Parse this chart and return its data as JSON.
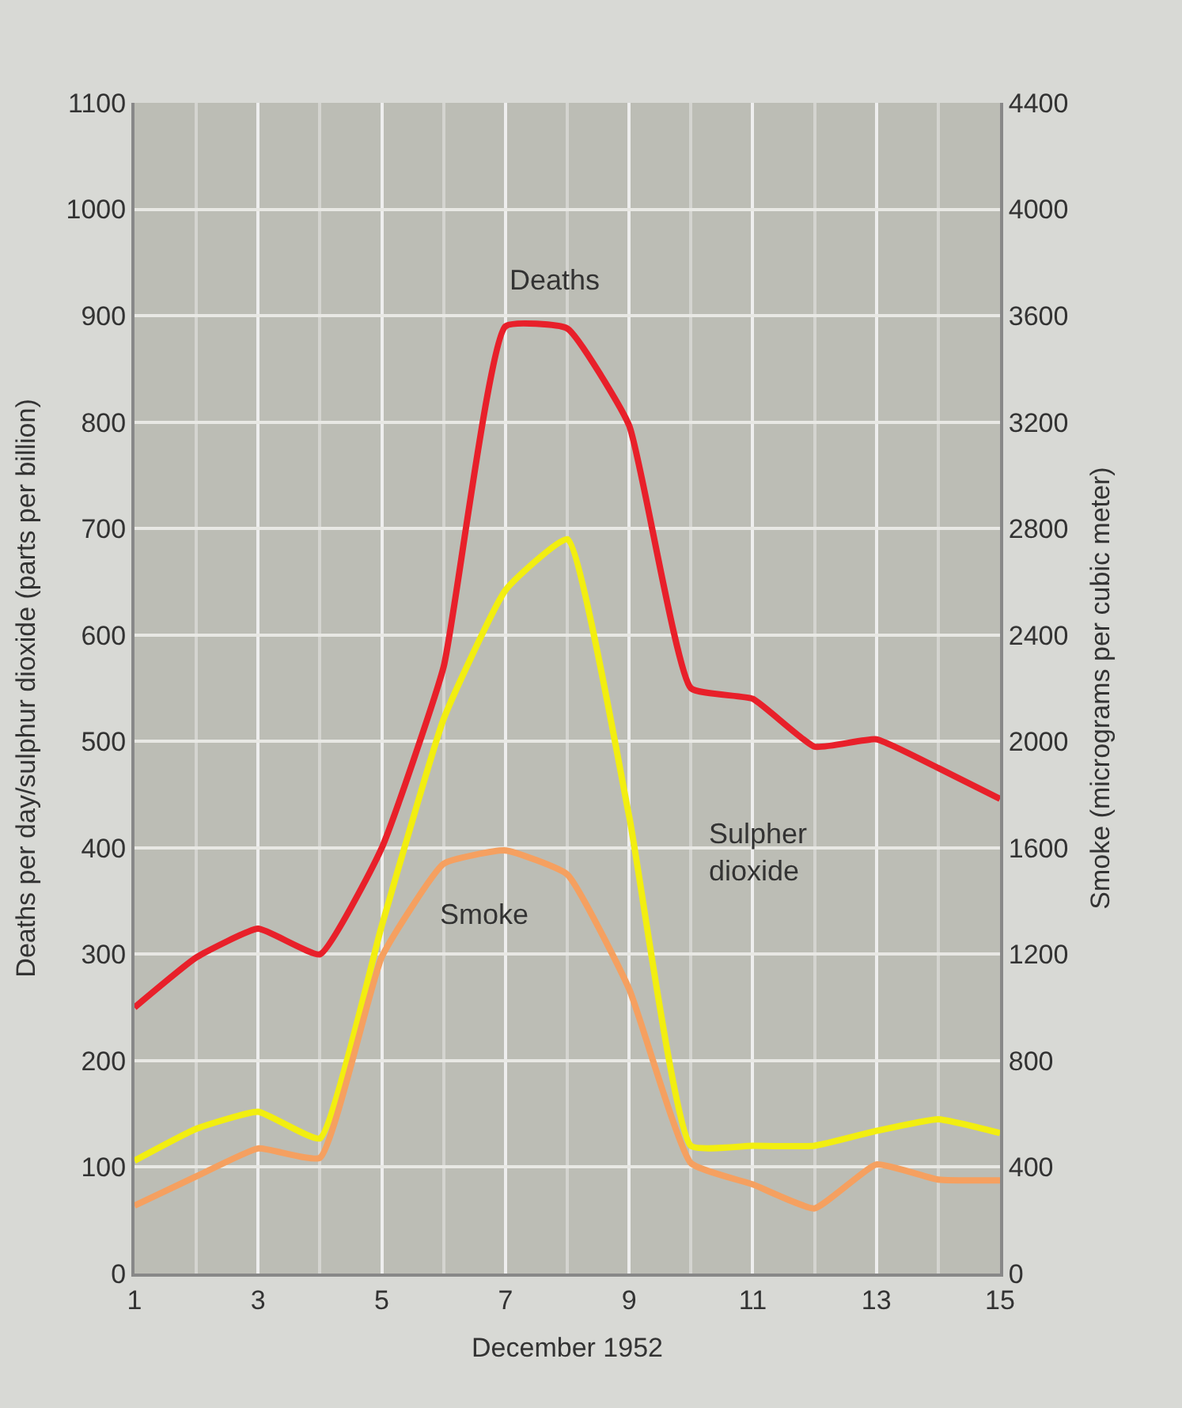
{
  "chart_data": {
    "type": "line",
    "xlabel": "December 1952",
    "ylabel": "Deaths per day/sulphur dioxide (parts per billion)",
    "y2label": "Smoke (micrograms per cubic meter)",
    "x": [
      1,
      2,
      3,
      4,
      5,
      6,
      7,
      8,
      9,
      10,
      11,
      12,
      13,
      14,
      15
    ],
    "series": [
      {
        "name": "Deaths",
        "color": "#e8202a",
        "values": [
          250,
          297,
          324,
          300,
          400,
          570,
          890,
          888,
          797,
          550,
          540,
          495,
          502,
          475,
          446
        ]
      },
      {
        "name": "Sulpher\ndioxide",
        "color": "#f2ee10",
        "values": [
          106,
          136,
          152,
          127,
          327,
          521,
          642,
          690,
          430,
          120,
          120,
          120,
          134,
          145,
          132
        ]
      },
      {
        "name": "Smoke",
        "color": "#f5a060",
        "axis": "y2",
        "values": [
          255,
          365,
          470,
          435,
          1190,
          1540,
          1590,
          1500,
          1070,
          415,
          335,
          245,
          410,
          353,
          350
        ]
      }
    ],
    "xlim": [
      1,
      15
    ],
    "xticks": [
      1,
      3,
      5,
      7,
      9,
      11,
      13,
      15
    ],
    "ylim": [
      0,
      1100
    ],
    "yticks": [
      0,
      100,
      200,
      300,
      400,
      500,
      600,
      700,
      800,
      900,
      1000,
      1100
    ],
    "y2lim": [
      0,
      4400
    ],
    "y2ticks": [
      0,
      400,
      800,
      1200,
      1600,
      2000,
      2400,
      2800,
      3200,
      3600,
      4000,
      4400
    ],
    "grid": true,
    "marker": "none",
    "line_style": "solid"
  }
}
